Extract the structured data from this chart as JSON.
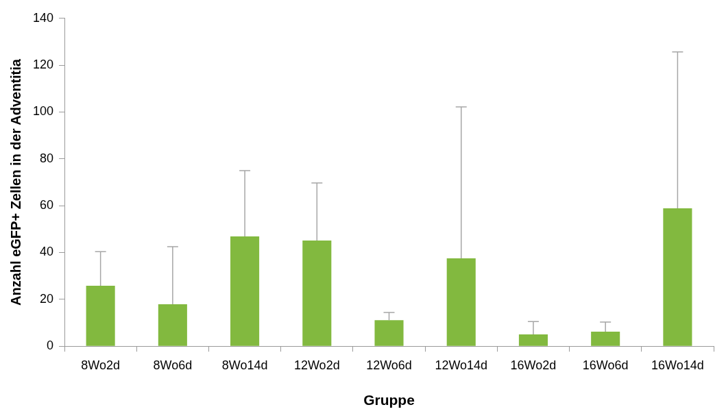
{
  "chart_data": {
    "type": "bar",
    "xlabel": "Gruppe",
    "ylabel": "Anzahl eGFP+ Zellen in der Adventitia",
    "categories": [
      "8Wo2d",
      "8Wo6d",
      "8Wo14d",
      "12Wo2d",
      "12Wo6d",
      "12Wo14d",
      "16Wo2d",
      "16Wo6d",
      "16Wo14d"
    ],
    "series": [
      {
        "color": "#82b93f",
        "values": [
          25.8,
          17.9,
          46.9,
          45.1,
          11.1,
          37.5,
          5.0,
          6.2,
          58.9
        ],
        "errors": [
          [
            25.8,
            40.4
          ],
          [
            17.9,
            42.5
          ],
          [
            46.9,
            75
          ],
          [
            45.1,
            69.7
          ],
          [
            11.1,
            14.4
          ],
          [
            37.5,
            102.2
          ],
          [
            5.0,
            10.5
          ],
          [
            6.2,
            10.3
          ],
          [
            58.9,
            125.7
          ]
        ]
      }
    ],
    "ylim": [
      0,
      140
    ],
    "yticks": [
      0,
      20,
      40,
      60,
      80,
      100,
      120,
      140
    ],
    "grid": false,
    "legend": false
  }
}
